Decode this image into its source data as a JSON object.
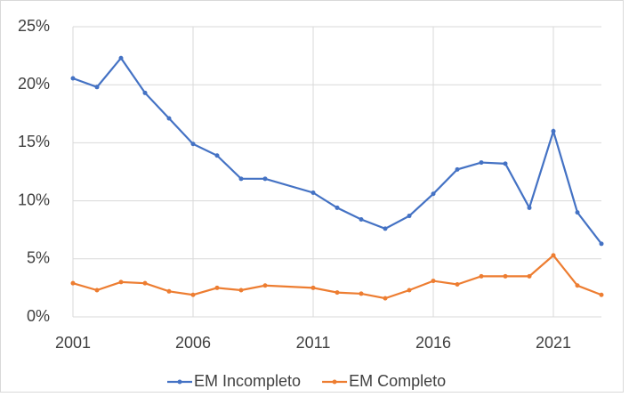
{
  "chart_data": {
    "type": "line",
    "x": [
      2001,
      2002,
      2003,
      2004,
      2005,
      2006,
      2007,
      2008,
      2009,
      2011,
      2012,
      2013,
      2014,
      2015,
      2016,
      2017,
      2018,
      2019,
      2020,
      2021,
      2022,
      2023
    ],
    "series": [
      {
        "name": "EM Incompleto",
        "color": "#4472c4",
        "values": [
          20.55,
          19.8,
          22.3,
          19.3,
          17.1,
          14.9,
          13.9,
          11.9,
          11.9,
          10.7,
          9.4,
          8.4,
          7.6,
          8.7,
          10.6,
          12.7,
          13.3,
          13.2,
          9.4,
          16.0,
          9.0,
          6.3
        ]
      },
      {
        "name": "EM Completo",
        "color": "#ed7d31",
        "values": [
          2.9,
          2.3,
          3.0,
          2.9,
          2.2,
          1.9,
          2.5,
          2.3,
          2.7,
          2.5,
          2.1,
          2.0,
          1.6,
          2.3,
          3.1,
          2.8,
          3.5,
          3.5,
          3.5,
          5.3,
          2.7,
          1.9
        ]
      }
    ],
    "xlim": [
      2001,
      2023
    ],
    "xticks": [
      2001,
      2006,
      2011,
      2016,
      2021
    ],
    "ylim": [
      0,
      25
    ],
    "yticks": [
      {
        "value": 0,
        "label": "0%"
      },
      {
        "value": 5,
        "label": "5%"
      },
      {
        "value": 10,
        "label": "10%"
      },
      {
        "value": 15,
        "label": "15%"
      },
      {
        "value": 20,
        "label": "20%"
      },
      {
        "value": 25,
        "label": "25%"
      }
    ],
    "grid": true,
    "legend": "bottom"
  }
}
